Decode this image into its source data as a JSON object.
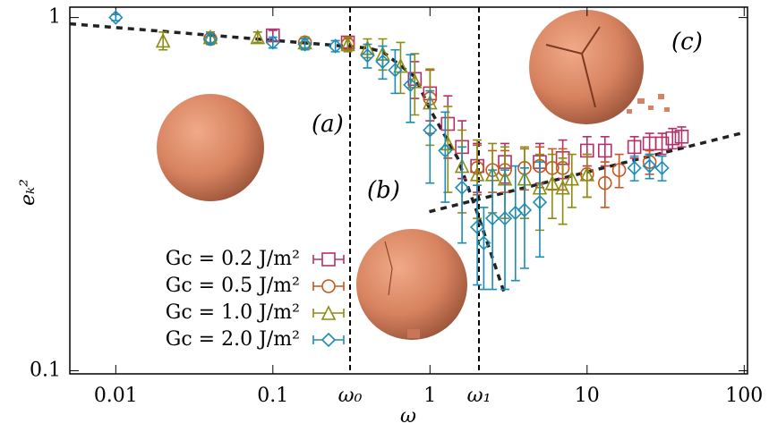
{
  "chart_data": {
    "type": "errorbar-scatter",
    "x_label": "ω",
    "y_label": "eₖ²",
    "xscale": "log",
    "yscale": "log",
    "xlim": [
      0.0051,
      105
    ],
    "ylim": [
      0.098,
      1.07
    ],
    "xticks": [
      0.01,
      0.1,
      1,
      10,
      100,
      {
        "value": 0.31,
        "label": "ω₀"
      },
      {
        "value": 2.05,
        "label": "ω₁"
      }
    ],
    "yticks": [
      {
        "value": 0.1,
        "label": "0.1"
      },
      1
    ],
    "legend": "lower left",
    "annotations": [
      "(a)",
      "(b)",
      "(c)"
    ],
    "series": [
      {
        "name": "Gc = 0.2 J/m²",
        "color": "#b3306a",
        "marker": "square",
        "x": [
          0.1,
          0.3,
          0.8,
          1.0,
          1.3,
          1.6,
          2,
          3,
          5,
          7,
          10,
          13,
          20,
          25,
          30,
          35,
          40
        ],
        "values": [
          0.89,
          0.85,
          0.67,
          0.61,
          0.5,
          0.43,
          0.38,
          0.39,
          0.39,
          0.4,
          0.42,
          0.42,
          0.43,
          0.44,
          0.44,
          0.455,
          0.46
        ],
        "errors": [
          0.03,
          0.03,
          0.08,
          0.1,
          0.1,
          0.08,
          0.06,
          0.05,
          0.05,
          0.05,
          0.04,
          0.04,
          0.03,
          0.03,
          0.03,
          0.03,
          0.03
        ]
      },
      {
        "name": "Gc = 0.5 J/m²",
        "color": "#c9551c",
        "marker": "circle",
        "x": [
          0.04,
          0.16,
          0.3,
          1.0,
          2.0,
          2.5,
          3,
          4,
          5,
          6,
          7,
          10,
          13,
          16,
          25
        ],
        "values": [
          0.87,
          0.85,
          0.84,
          0.59,
          0.375,
          0.37,
          0.37,
          0.375,
          0.38,
          0.375,
          0.375,
          0.36,
          0.34,
          0.37,
          0.39
        ],
        "errors": [
          0.03,
          0.03,
          0.03,
          0.12,
          0.06,
          0.05,
          0.05,
          0.05,
          0.05,
          0.05,
          0.05,
          0.05,
          0.05,
          0.04,
          0.03
        ]
      },
      {
        "name": "Gc = 1.0 J/m²",
        "color": "#8c8c12",
        "marker": "triangle",
        "x": [
          0.02,
          0.04,
          0.08,
          0.16,
          0.3,
          0.4,
          0.5,
          0.65,
          0.8,
          1.0,
          1.3,
          1.6,
          2.0,
          2.5,
          3,
          4,
          5,
          6,
          7,
          8,
          10
        ],
        "values": [
          0.86,
          0.88,
          0.88,
          0.85,
          0.84,
          0.82,
          0.79,
          0.73,
          0.66,
          0.575,
          0.44,
          0.38,
          0.36,
          0.36,
          0.35,
          0.35,
          0.33,
          0.34,
          0.33,
          0.35,
          0.36
        ],
        "errors": [
          0.05,
          0.03,
          0.03,
          0.03,
          0.04,
          0.05,
          0.08,
          0.12,
          0.13,
          0.14,
          0.12,
          0.1,
          0.09,
          0.08,
          0.08,
          0.08,
          0.08,
          0.07,
          0.07,
          0.06,
          0.05
        ]
      },
      {
        "name": "Gc = 2.0 J/m²",
        "color": "#1c8cb8",
        "marker": "diamond",
        "x": [
          0.01,
          0.04,
          0.1,
          0.16,
          0.25,
          0.4,
          0.5,
          0.6,
          0.75,
          1.0,
          1.25,
          1.6,
          2.0,
          2.2,
          2.5,
          3,
          3.5,
          4,
          5,
          20,
          25,
          30
        ],
        "values": [
          1.0,
          0.87,
          0.85,
          0.84,
          0.83,
          0.78,
          0.75,
          0.71,
          0.645,
          0.48,
          0.42,
          0.33,
          0.255,
          0.23,
          0.27,
          0.27,
          0.28,
          0.285,
          0.3,
          0.375,
          0.38,
          0.375
        ],
        "errors": [
          0.02,
          0.03,
          0.03,
          0.03,
          0.03,
          0.06,
          0.08,
          0.1,
          0.14,
          0.14,
          0.12,
          0.1,
          0.08,
          0.06,
          0.1,
          0.1,
          0.1,
          0.09,
          0.09,
          0.03,
          0.03,
          0.03
        ]
      }
    ],
    "fits": [
      {
        "x": [
          0.0051,
          0.4,
          0.5,
          0.8,
          1.0,
          1.5,
          2.0,
          3.0
        ],
        "values": [
          0.96,
          0.82,
          0.8,
          0.68,
          0.55,
          0.4,
          0.28,
          0.164
        ]
      },
      {
        "x": [
          0.99,
          95
        ],
        "values": [
          0.282,
          0.47
        ]
      }
    ]
  }
}
